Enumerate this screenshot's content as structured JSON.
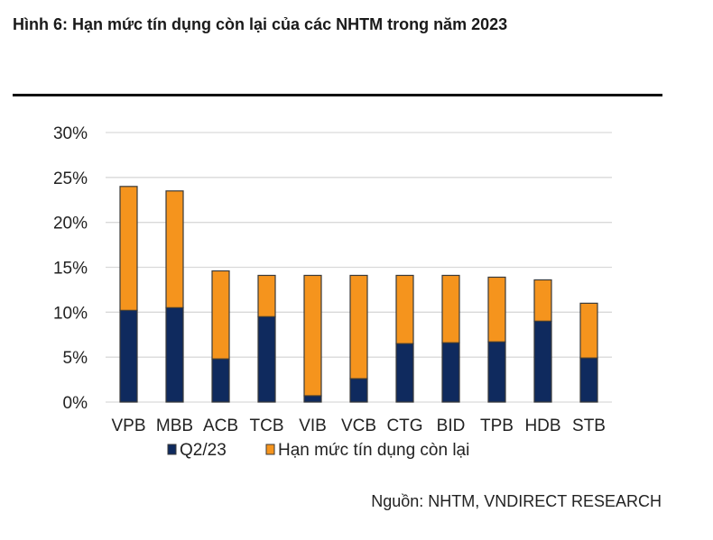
{
  "title": "Hình 6: Hạn mức tín dụng còn lại của các NHTM trong năm 2023",
  "source": "Nguồn: NHTM, VNDIRECT RESEARCH",
  "colors": {
    "q2": "#0f2a5e",
    "remaining": "#f5941d",
    "grid": "#d9d9d9",
    "stroke": "#3a3a3a"
  },
  "chart_data": {
    "type": "bar",
    "stacked": true,
    "categories": [
      "VPB",
      "MBB",
      "ACB",
      "TCB",
      "VIB",
      "VCB",
      "CTG",
      "BID",
      "TPB",
      "HDB",
      "STB"
    ],
    "series": [
      {
        "name": "Q2/23",
        "values": [
          10.2,
          10.5,
          4.8,
          9.5,
          0.7,
          2.6,
          6.5,
          6.6,
          6.7,
          9.0,
          4.9
        ]
      },
      {
        "name": "Hạn mức tín dụng còn lại",
        "values": [
          13.8,
          13.0,
          9.8,
          4.6,
          13.4,
          11.5,
          7.6,
          7.5,
          7.2,
          4.6,
          6.1
        ]
      }
    ],
    "yticks": [
      "0%",
      "5%",
      "10%",
      "15%",
      "20%",
      "25%",
      "30%"
    ],
    "ylim": [
      0,
      30
    ],
    "grid": true,
    "legend": "bottom"
  }
}
